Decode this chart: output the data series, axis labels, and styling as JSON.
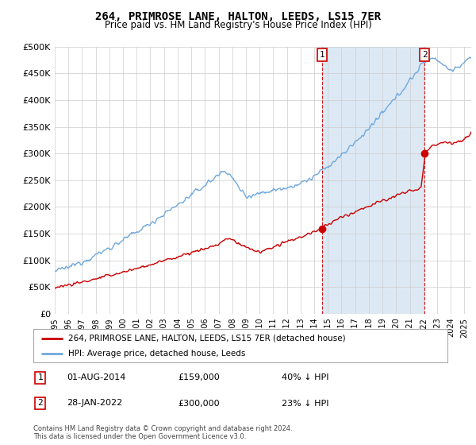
{
  "title": "264, PRIMROSE LANE, HALTON, LEEDS, LS15 7ER",
  "subtitle": "Price paid vs. HM Land Registry's House Price Index (HPI)",
  "ylabel_ticks": [
    "£0",
    "£50K",
    "£100K",
    "£150K",
    "£200K",
    "£250K",
    "£300K",
    "£350K",
    "£400K",
    "£450K",
    "£500K"
  ],
  "ytick_values": [
    0,
    50000,
    100000,
    150000,
    200000,
    250000,
    300000,
    350000,
    400000,
    450000,
    500000
  ],
  "hpi_color": "#6fa8dc",
  "price_color": "#cc0000",
  "sale1": {
    "date_label": "01-AUG-2014",
    "price": 159000,
    "pct": "40%",
    "direction": "↓",
    "x": 2014.583
  },
  "sale2": {
    "date_label": "28-JAN-2022",
    "price": 300000,
    "pct": "23%",
    "direction": "↓",
    "x": 2022.083
  },
  "legend_label1": "264, PRIMROSE LANE, HALTON, LEEDS, LS15 7ER (detached house)",
  "legend_label2": "HPI: Average price, detached house, Leeds",
  "footer": "Contains HM Land Registry data © Crown copyright and database right 2024.\nThis data is licensed under the Open Government Licence v3.0.",
  "background_color": "#ffffff",
  "plot_bg_color": "#ffffff",
  "shade_color": "#dce9f5",
  "grid_color": "#cccccc",
  "xmin": 1995.0,
  "xmax": 2025.5,
  "ymin": 0,
  "ymax": 500000
}
